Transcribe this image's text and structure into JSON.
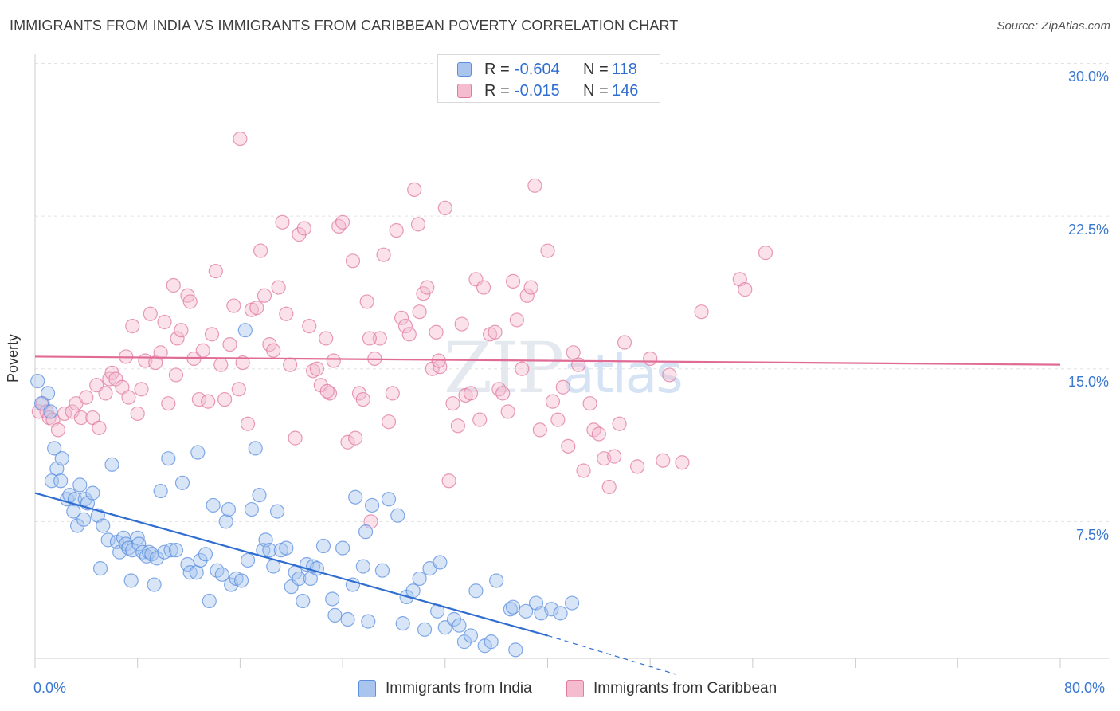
{
  "title": "IMMIGRANTS FROM INDIA VS IMMIGRANTS FROM CARIBBEAN POVERTY CORRELATION CHART",
  "source": "Source: ZipAtlas.com",
  "watermark": {
    "zip": "ZIP",
    "atlas": "atlas"
  },
  "colors": {
    "india": "#5b8fe0",
    "india_fill": "#a9c5ee",
    "caribbean": "#e07aa0",
    "caribbean_fill": "#f5bcd0",
    "india_line": "#2f6dd0",
    "caribbean_line": "#e06b95",
    "tick": "#3a78d0"
  },
  "legend": {
    "india": {
      "r_label": "R =",
      "r_value": "-0.604",
      "n_label": "N =",
      "n_value": "118"
    },
    "caribbean": {
      "r_label": "R =",
      "r_value": "-0.015",
      "n_label": "N =",
      "n_value": "146"
    }
  },
  "bottom_legend": {
    "india": "Immigrants from India",
    "caribbean": "Immigrants from Caribbean"
  },
  "y_ticks": [
    "30.0%",
    "22.5%",
    "15.0%",
    "7.5%"
  ],
  "x_ticks": [
    "0.0%",
    "80.0%"
  ],
  "ylabel": "Poverty",
  "chart_data": {
    "type": "scatter",
    "title": "IMMIGRANTS FROM INDIA VS IMMIGRANTS FROM CARIBBEAN POVERTY CORRELATION CHART",
    "xlabel": "",
    "ylabel": "Poverty",
    "xlim": [
      0,
      80
    ],
    "ylim": [
      0,
      30
    ],
    "grid": true,
    "legend_placement": "top-center",
    "series": [
      {
        "name": "Immigrants from India",
        "trend": {
          "x": [
            0,
            40
          ],
          "y": [
            8.9,
            1.9
          ],
          "dashed_extension": {
            "x": [
              40,
              50
            ],
            "y": [
              1.9,
              0.0
            ]
          }
        },
        "points": [
          [
            0.2,
            14.4
          ],
          [
            1.0,
            13.8
          ],
          [
            0.5,
            13.3
          ],
          [
            1.2,
            12.9
          ],
          [
            1.5,
            11.1
          ],
          [
            1.7,
            10.1
          ],
          [
            2.1,
            10.6
          ],
          [
            1.3,
            9.5
          ],
          [
            2.0,
            9.5
          ],
          [
            2.5,
            8.6
          ],
          [
            2.7,
            8.8
          ],
          [
            3.1,
            8.6
          ],
          [
            3.5,
            9.3
          ],
          [
            3.9,
            8.6
          ],
          [
            4.1,
            8.4
          ],
          [
            4.5,
            8.9
          ],
          [
            3.0,
            8.0
          ],
          [
            3.3,
            7.3
          ],
          [
            3.8,
            7.6
          ],
          [
            4.9,
            7.8
          ],
          [
            5.3,
            7.3
          ],
          [
            5.7,
            6.6
          ],
          [
            6.0,
            10.3
          ],
          [
            6.4,
            6.5
          ],
          [
            6.6,
            6.0
          ],
          [
            6.9,
            6.7
          ],
          [
            7.1,
            6.4
          ],
          [
            7.3,
            6.2
          ],
          [
            7.6,
            6.1
          ],
          [
            8.0,
            6.7
          ],
          [
            8.1,
            6.4
          ],
          [
            8.4,
            6.0
          ],
          [
            8.7,
            5.8
          ],
          [
            8.9,
            6.0
          ],
          [
            9.1,
            5.9
          ],
          [
            9.5,
            5.7
          ],
          [
            9.8,
            9.0
          ],
          [
            10.1,
            6.0
          ],
          [
            10.4,
            10.6
          ],
          [
            10.6,
            6.1
          ],
          [
            11.0,
            6.1
          ],
          [
            11.5,
            9.4
          ],
          [
            11.9,
            5.4
          ],
          [
            12.1,
            5.0
          ],
          [
            12.6,
            5.0
          ],
          [
            12.9,
            5.6
          ],
          [
            13.3,
            5.9
          ],
          [
            13.6,
            3.6
          ],
          [
            13.9,
            8.3
          ],
          [
            14.2,
            5.1
          ],
          [
            14.6,
            4.9
          ],
          [
            14.9,
            7.5
          ],
          [
            15.1,
            8.1
          ],
          [
            15.3,
            4.4
          ],
          [
            15.7,
            4.7
          ],
          [
            16.1,
            4.6
          ],
          [
            16.4,
            16.9
          ],
          [
            16.6,
            5.6
          ],
          [
            16.9,
            8.1
          ],
          [
            17.2,
            11.1
          ],
          [
            17.5,
            8.8
          ],
          [
            17.8,
            6.1
          ],
          [
            18.0,
            6.6
          ],
          [
            18.3,
            6.1
          ],
          [
            18.6,
            5.3
          ],
          [
            18.9,
            8.0
          ],
          [
            19.2,
            6.1
          ],
          [
            19.6,
            6.2
          ],
          [
            20.0,
            4.3
          ],
          [
            20.3,
            5.0
          ],
          [
            20.6,
            4.7
          ],
          [
            20.9,
            3.6
          ],
          [
            21.2,
            5.4
          ],
          [
            21.5,
            4.7
          ],
          [
            21.7,
            5.3
          ],
          [
            22.0,
            5.2
          ],
          [
            22.5,
            6.3
          ],
          [
            23.2,
            3.7
          ],
          [
            23.4,
            2.9
          ],
          [
            24.0,
            6.2
          ],
          [
            24.4,
            2.7
          ],
          [
            24.8,
            4.4
          ],
          [
            25.0,
            8.7
          ],
          [
            25.6,
            5.3
          ],
          [
            25.8,
            7.0
          ],
          [
            26.0,
            2.6
          ],
          [
            26.3,
            8.3
          ],
          [
            27.1,
            5.1
          ],
          [
            27.6,
            8.6
          ],
          [
            28.3,
            7.8
          ],
          [
            28.7,
            2.5
          ],
          [
            29.0,
            3.8
          ],
          [
            29.5,
            4.1
          ],
          [
            30.0,
            4.7
          ],
          [
            30.4,
            2.2
          ],
          [
            30.8,
            5.2
          ],
          [
            31.4,
            3.1
          ],
          [
            31.6,
            5.5
          ],
          [
            32.0,
            2.3
          ],
          [
            32.7,
            2.7
          ],
          [
            33.1,
            2.4
          ],
          [
            33.5,
            1.6
          ],
          [
            34.0,
            1.9
          ],
          [
            34.4,
            4.1
          ],
          [
            35.1,
            1.4
          ],
          [
            35.6,
            1.6
          ],
          [
            36.0,
            4.6
          ],
          [
            37.1,
            3.2
          ],
          [
            37.3,
            3.3
          ],
          [
            37.5,
            1.2
          ],
          [
            38.3,
            3.1
          ],
          [
            39.1,
            3.5
          ],
          [
            39.5,
            3.0
          ],
          [
            40.3,
            3.2
          ],
          [
            41.0,
            3.0
          ],
          [
            41.9,
            3.5
          ],
          [
            12.7,
            10.9
          ],
          [
            7.5,
            4.6
          ],
          [
            9.3,
            4.4
          ],
          [
            5.1,
            5.2
          ]
        ]
      },
      {
        "name": "Immigrants from Caribbean",
        "trend": {
          "x": [
            0,
            80
          ],
          "y": [
            15.6,
            15.2
          ]
        },
        "points": [
          [
            0.3,
            12.9
          ],
          [
            0.6,
            13.3
          ],
          [
            0.9,
            12.9
          ],
          [
            1.1,
            12.6
          ],
          [
            1.4,
            12.5
          ],
          [
            1.8,
            12.0
          ],
          [
            2.3,
            12.8
          ],
          [
            2.9,
            12.9
          ],
          [
            3.2,
            13.3
          ],
          [
            3.6,
            12.6
          ],
          [
            4.0,
            13.6
          ],
          [
            4.5,
            12.6
          ],
          [
            4.8,
            14.2
          ],
          [
            5.0,
            12.1
          ],
          [
            5.5,
            13.8
          ],
          [
            5.8,
            14.5
          ],
          [
            6.0,
            14.8
          ],
          [
            6.3,
            14.5
          ],
          [
            6.8,
            14.1
          ],
          [
            7.1,
            15.6
          ],
          [
            7.3,
            13.6
          ],
          [
            7.6,
            17.1
          ],
          [
            8.0,
            12.8
          ],
          [
            8.3,
            14.0
          ],
          [
            8.6,
            15.4
          ],
          [
            9.0,
            17.7
          ],
          [
            9.4,
            15.3
          ],
          [
            9.8,
            15.8
          ],
          [
            10.1,
            17.3
          ],
          [
            10.4,
            13.3
          ],
          [
            10.8,
            19.1
          ],
          [
            11.1,
            16.5
          ],
          [
            11.4,
            16.9
          ],
          [
            11.9,
            18.6
          ],
          [
            12.1,
            18.3
          ],
          [
            12.4,
            15.5
          ],
          [
            12.8,
            13.5
          ],
          [
            13.1,
            15.9
          ],
          [
            13.5,
            13.4
          ],
          [
            13.8,
            16.7
          ],
          [
            14.1,
            19.8
          ],
          [
            14.5,
            15.2
          ],
          [
            14.8,
            13.5
          ],
          [
            15.2,
            16.2
          ],
          [
            15.5,
            18.1
          ],
          [
            15.9,
            14.0
          ],
          [
            16.2,
            15.3
          ],
          [
            16.6,
            12.3
          ],
          [
            16.9,
            17.9
          ],
          [
            17.3,
            18.0
          ],
          [
            17.6,
            20.8
          ],
          [
            17.9,
            18.6
          ],
          [
            18.3,
            16.2
          ],
          [
            18.6,
            15.9
          ],
          [
            19.0,
            19.0
          ],
          [
            19.3,
            22.2
          ],
          [
            19.6,
            17.7
          ],
          [
            19.9,
            15.2
          ],
          [
            20.3,
            11.6
          ],
          [
            20.6,
            21.6
          ],
          [
            21.0,
            21.9
          ],
          [
            21.4,
            17.1
          ],
          [
            21.7,
            14.9
          ],
          [
            22.0,
            15.0
          ],
          [
            22.3,
            14.2
          ],
          [
            22.7,
            16.5
          ],
          [
            23.0,
            13.8
          ],
          [
            23.3,
            15.4
          ],
          [
            23.7,
            22.0
          ],
          [
            24.0,
            22.2
          ],
          [
            24.4,
            11.4
          ],
          [
            24.8,
            20.3
          ],
          [
            25.0,
            11.6
          ],
          [
            25.3,
            13.8
          ],
          [
            25.6,
            13.5
          ],
          [
            25.9,
            18.3
          ],
          [
            26.2,
            7.5
          ],
          [
            26.5,
            15.5
          ],
          [
            26.9,
            16.5
          ],
          [
            27.2,
            20.6
          ],
          [
            27.6,
            12.4
          ],
          [
            27.9,
            13.8
          ],
          [
            28.2,
            21.8
          ],
          [
            28.6,
            17.5
          ],
          [
            28.9,
            17.1
          ],
          [
            29.2,
            16.7
          ],
          [
            29.6,
            23.8
          ],
          [
            29.9,
            22.1
          ],
          [
            30.3,
            18.7
          ],
          [
            30.6,
            19.0
          ],
          [
            31.0,
            15.0
          ],
          [
            31.3,
            16.8
          ],
          [
            31.6,
            15.1
          ],
          [
            32.0,
            22.9
          ],
          [
            32.3,
            9.5
          ],
          [
            32.6,
            13.3
          ],
          [
            33.0,
            12.2
          ],
          [
            33.3,
            17.2
          ],
          [
            33.6,
            13.7
          ],
          [
            34.0,
            13.8
          ],
          [
            34.4,
            19.4
          ],
          [
            34.7,
            12.5
          ],
          [
            35.0,
            19.0
          ],
          [
            35.5,
            16.7
          ],
          [
            35.9,
            16.8
          ],
          [
            36.2,
            14.0
          ],
          [
            36.5,
            13.8
          ],
          [
            36.9,
            12.9
          ],
          [
            37.3,
            19.3
          ],
          [
            37.6,
            17.4
          ],
          [
            38.0,
            15.0
          ],
          [
            38.4,
            18.6
          ],
          [
            38.7,
            19.0
          ],
          [
            39.0,
            24.0
          ],
          [
            39.4,
            12.0
          ],
          [
            40.0,
            20.8
          ],
          [
            40.4,
            13.4
          ],
          [
            40.8,
            12.5
          ],
          [
            41.2,
            14.1
          ],
          [
            41.6,
            11.2
          ],
          [
            42.0,
            15.8
          ],
          [
            42.4,
            15.2
          ],
          [
            42.8,
            10.0
          ],
          [
            43.3,
            13.3
          ],
          [
            43.6,
            12.0
          ],
          [
            44.0,
            11.8
          ],
          [
            44.4,
            10.6
          ],
          [
            44.8,
            9.2
          ],
          [
            45.2,
            10.7
          ],
          [
            45.6,
            12.3
          ],
          [
            46.0,
            16.3
          ],
          [
            47.0,
            10.2
          ],
          [
            48.0,
            15.5
          ],
          [
            49.0,
            10.5
          ],
          [
            49.5,
            14.7
          ],
          [
            50.5,
            10.4
          ],
          [
            52.0,
            17.8
          ],
          [
            55.0,
            19.4
          ],
          [
            55.4,
            18.9
          ],
          [
            57.0,
            20.7
          ],
          [
            16.0,
            26.3
          ],
          [
            11.0,
            14.7
          ],
          [
            22.8,
            13.9
          ],
          [
            30.0,
            17.8
          ],
          [
            26.1,
            16.5
          ],
          [
            31.5,
            15.4
          ]
        ]
      }
    ]
  }
}
